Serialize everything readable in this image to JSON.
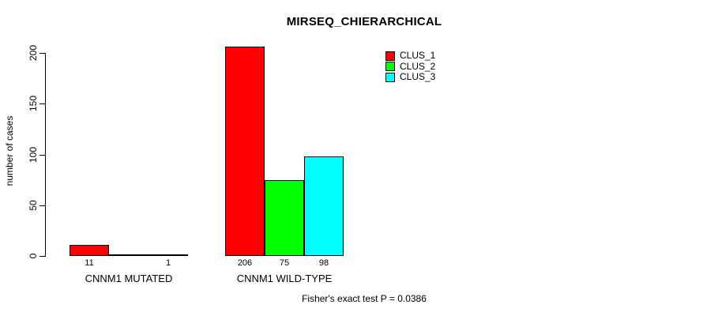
{
  "title": "MIRSEQ_CHIERARCHICAL",
  "footer": "Fisher's exact test P = 0.0386",
  "y_axis": {
    "label": "number of cases",
    "tick_labels": [
      "0",
      "50",
      "100",
      "150",
      "200"
    ]
  },
  "x_axis": {
    "group_labels": [
      "CNNM1 MUTATED",
      "CNNM1 WILD-TYPE"
    ]
  },
  "legend": {
    "items": [
      {
        "label": "CLUS_1",
        "color": "#ff0000"
      },
      {
        "label": "CLUS_2",
        "color": "#00ff00"
      },
      {
        "label": "CLUS_3",
        "color": "#00ffff"
      }
    ]
  },
  "chart_data": {
    "type": "bar",
    "title": "MIRSEQ_CHIERARCHICAL",
    "xlabel": "",
    "ylabel": "number of cases",
    "ylim": [
      0,
      200
    ],
    "yticks": [
      0,
      50,
      100,
      150,
      200
    ],
    "grid": false,
    "legend_position": "top-right",
    "categories": [
      "CNNM1 MUTATED",
      "CNNM1 WILD-TYPE"
    ],
    "series": [
      {
        "name": "CLUS_1",
        "color": "#ff0000",
        "values": [
          11,
          206
        ]
      },
      {
        "name": "CLUS_2",
        "color": "#00ff00",
        "values": [
          0,
          75
        ]
      },
      {
        "name": "CLUS_3",
        "color": "#00ffff",
        "values": [
          1,
          98
        ]
      }
    ],
    "bar_value_labels": [
      [
        "11",
        "",
        "1"
      ],
      [
        "206",
        "75",
        "98"
      ]
    ],
    "annotation": "Fisher's exact test P = 0.0386"
  }
}
